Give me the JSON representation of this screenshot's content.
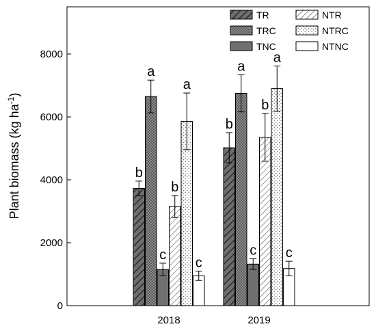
{
  "chart_data": {
    "type": "bar",
    "categories": [
      "2018",
      "2019"
    ],
    "ylabel": "Plant biomass (kg ha",
    "ylabel_exponent": "-1",
    "ylim": [
      0,
      9500
    ],
    "yticks": [
      0,
      2000,
      4000,
      6000,
      8000
    ],
    "legend_position": "top-right",
    "series": [
      {
        "name": "TR",
        "pattern": "hatch-dark",
        "values": [
          3730,
          5020
        ],
        "errors": [
          230,
          480
        ],
        "letters": [
          "b",
          "b"
        ]
      },
      {
        "name": "TRC",
        "pattern": "dots-dark",
        "values": [
          6650,
          6750
        ],
        "errors": [
          520,
          590
        ],
        "letters": [
          "a",
          "a"
        ]
      },
      {
        "name": "TNC",
        "pattern": "solid-gray",
        "values": [
          1150,
          1320
        ],
        "errors": [
          200,
          170
        ],
        "letters": [
          "c",
          "c"
        ]
      },
      {
        "name": "NTR",
        "pattern": "hatch-light",
        "values": [
          3150,
          5350
        ],
        "errors": [
          350,
          760
        ],
        "letters": [
          "b",
          "b"
        ]
      },
      {
        "name": "NTRC",
        "pattern": "dots-light",
        "values": [
          5860,
          6900
        ],
        "errors": [
          900,
          720
        ],
        "letters": [
          "a",
          "a"
        ]
      },
      {
        "name": "NTNC",
        "pattern": "white",
        "values": [
          950,
          1180
        ],
        "errors": [
          150,
          230
        ],
        "letters": [
          "c",
          "c"
        ]
      }
    ]
  }
}
